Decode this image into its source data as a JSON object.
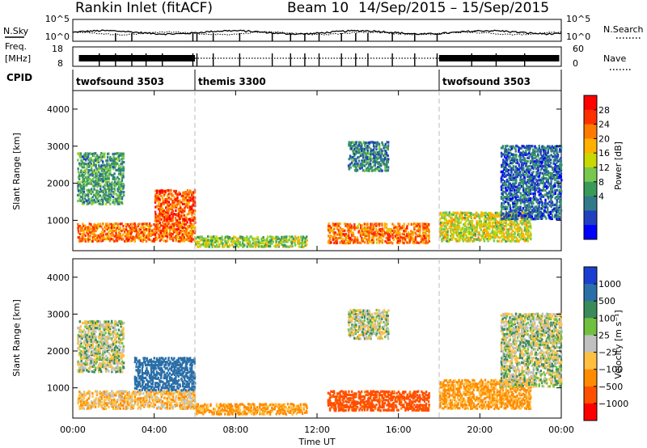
{
  "header": {
    "station": "Rankin Inlet (fitACF)",
    "beam": "Beam 10",
    "date_range": "14/Sep/2015 – 15/Sep/2015"
  },
  "summary_panel": {
    "nsky_label": "N.Sky",
    "nsky_ticks": [
      "10^5",
      "10^0"
    ],
    "nsearch_label": "N.Search",
    "nsearch_ticks": [
      "10^5",
      "10^0"
    ],
    "freq_label": "Freq.",
    "freq_unit": "[MHz]",
    "freq_ticks": [
      "18",
      "8"
    ],
    "nave_label": "Nave",
    "nave_ticks": [
      "60",
      "0"
    ],
    "cpid_label": "CPID"
  },
  "cpid_segments": [
    {
      "label": "twofsound 3503",
      "start_h": 0
    },
    {
      "label": "themis 3300",
      "start_h": 6
    },
    {
      "label": "twofsound 3503",
      "start_h": 18
    }
  ],
  "colorbars": {
    "power": {
      "label": "Power [dB]",
      "ticks": [
        "28",
        "24",
        "20",
        "16",
        "12",
        "8",
        "4"
      ],
      "colors": [
        "#ff0000",
        "#ff3000",
        "#ff7a00",
        "#ffb000",
        "#c8d800",
        "#78c850",
        "#3a9a5a",
        "#327a8a",
        "#2040c0",
        "#0000ff"
      ]
    },
    "velocity": {
      "label": "Velocity [m s⁻¹]",
      "ticks": [
        "1000",
        "500",
        "100",
        "25",
        "−25",
        "−100",
        "−500",
        "−1000"
      ],
      "colors": [
        "#1a3fd0",
        "#2b6fa8",
        "#3b8a5a",
        "#70c040",
        "#c0c0c0",
        "#ffc040",
        "#ff8c00",
        "#ff5000",
        "#ff0000"
      ]
    }
  },
  "axes": {
    "ylabel": "Slant Range [km]",
    "yticks": [
      "1000",
      "2000",
      "3000",
      "4000"
    ],
    "xlabel": "Time UT",
    "xticks": [
      "00:00",
      "04:00",
      "08:00",
      "12:00",
      "16:00",
      "20:00",
      "00:00"
    ]
  },
  "chart_data": [
    {
      "type": "heatmap",
      "quantity": "power",
      "x_range_h": [
        0,
        24
      ],
      "ylim": [
        180,
        4500
      ],
      "xlabel": "Time UT",
      "ylabel": "Slant Range [km]",
      "colorbar_label": "Power [dB]",
      "colorbar_ticks": [
        4,
        8,
        12,
        16,
        20,
        24,
        28
      ],
      "regions": [
        {
          "t": [
            0.2,
            6.0
          ],
          "r": [
            400,
            900
          ],
          "value": 24
        },
        {
          "t": [
            4.0,
            6.0
          ],
          "r": [
            900,
            1800
          ],
          "value": 26
        },
        {
          "t": [
            0.2,
            2.5
          ],
          "r": [
            1400,
            2800
          ],
          "value": 12
        },
        {
          "t": [
            6.0,
            11.5
          ],
          "r": [
            250,
            550
          ],
          "value": 16
        },
        {
          "t": [
            12.5,
            17.5
          ],
          "r": [
            350,
            900
          ],
          "value": 24
        },
        {
          "t": [
            18.0,
            22.5
          ],
          "r": [
            400,
            1200
          ],
          "value": 18
        },
        {
          "t": [
            13.5,
            15.5
          ],
          "r": [
            2300,
            3100
          ],
          "value": 10
        },
        {
          "t": [
            21.0,
            24.0
          ],
          "r": [
            1000,
            3000
          ],
          "value": 8
        }
      ]
    },
    {
      "type": "heatmap",
      "quantity": "velocity",
      "x_range_h": [
        0,
        24
      ],
      "ylim": [
        180,
        4500
      ],
      "xlabel": "Time UT",
      "ylabel": "Slant Range [km]",
      "colorbar_label": "Velocity [m s⁻¹]",
      "colorbar_ticks": [
        -1000,
        -500,
        -100,
        -25,
        25,
        100,
        500,
        1000
      ],
      "regions": [
        {
          "t": [
            0.2,
            6.0
          ],
          "r": [
            400,
            900
          ],
          "value": -100
        },
        {
          "t": [
            3.0,
            6.0
          ],
          "r": [
            900,
            1800
          ],
          "value": 500
        },
        {
          "t": [
            0.2,
            2.5
          ],
          "r": [
            1400,
            2800
          ],
          "value": 0
        },
        {
          "t": [
            6.0,
            11.5
          ],
          "r": [
            250,
            550
          ],
          "value": -200
        },
        {
          "t": [
            12.5,
            17.5
          ],
          "r": [
            350,
            900
          ],
          "value": -500
        },
        {
          "t": [
            18.0,
            22.5
          ],
          "r": [
            400,
            1200
          ],
          "value": -200
        },
        {
          "t": [
            13.5,
            15.5
          ],
          "r": [
            2300,
            3100
          ],
          "value": 0
        },
        {
          "t": [
            21.0,
            24.0
          ],
          "r": [
            1000,
            3000
          ],
          "value": 0
        }
      ]
    }
  ]
}
